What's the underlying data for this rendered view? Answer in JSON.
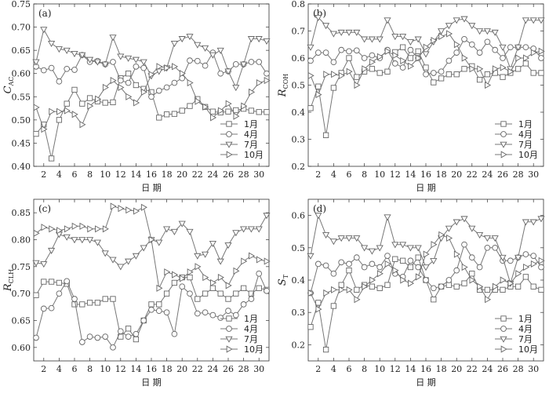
{
  "chart_data": [
    {
      "type": "line",
      "panel_label": "(a)",
      "ylabel": "C",
      "ylabel_sub": "AC",
      "xlabel": "日 期",
      "ylim": [
        0.4,
        0.75
      ],
      "yticks": [
        0.4,
        0.45,
        0.5,
        0.55,
        0.6,
        0.65,
        0.7,
        0.75
      ],
      "xlim": [
        1,
        31
      ],
      "xticks": [
        2,
        4,
        6,
        8,
        10,
        12,
        14,
        16,
        18,
        20,
        22,
        24,
        26,
        28,
        30
      ],
      "x": [
        1,
        2,
        3,
        4,
        5,
        6,
        7,
        8,
        9,
        10,
        11,
        12,
        13,
        14,
        15,
        16,
        17,
        18,
        19,
        20,
        21,
        22,
        23,
        24,
        25,
        26,
        27,
        28,
        29,
        30,
        31
      ],
      "series": [
        {
          "name": "1月",
          "marker": "square",
          "values": [
            0.47,
            0.49,
            0.417,
            0.5,
            0.535,
            0.565,
            0.535,
            0.547,
            0.54,
            0.537,
            0.538,
            0.59,
            0.6,
            0.575,
            0.567,
            0.56,
            0.505,
            0.512,
            0.513,
            0.52,
            0.53,
            0.545,
            0.528,
            0.518,
            0.516,
            0.518,
            0.521,
            0.524,
            0.52,
            0.517,
            0.517
          ]
        },
        {
          "name": "4月",
          "marker": "circle",
          "values": [
            0.615,
            0.607,
            0.612,
            0.583,
            0.61,
            0.608,
            0.64,
            0.625,
            0.627,
            0.62,
            0.625,
            0.585,
            0.58,
            0.615,
            0.612,
            0.55,
            0.563,
            0.57,
            0.58,
            0.59,
            0.628,
            0.627,
            0.617,
            0.645,
            0.6,
            0.605,
            0.62,
            0.62,
            0.625,
            0.625,
            0.6
          ]
        },
        {
          "name": "7月",
          "marker": "triangle-down",
          "values": [
            0.625,
            0.695,
            0.665,
            0.653,
            0.65,
            0.643,
            0.64,
            0.63,
            0.625,
            0.62,
            0.678,
            0.637,
            0.633,
            0.63,
            0.625,
            0.595,
            0.605,
            0.612,
            0.665,
            0.675,
            0.68,
            0.662,
            0.655,
            0.64,
            0.65,
            0.605,
            0.57,
            0.62,
            0.675,
            0.675,
            0.67
          ]
        },
        {
          "name": "10月",
          "marker": "triangle-right",
          "values": [
            0.527,
            0.48,
            0.518,
            0.518,
            0.52,
            0.512,
            0.49,
            0.53,
            0.545,
            0.57,
            0.585,
            0.57,
            0.55,
            0.537,
            0.56,
            0.598,
            0.615,
            0.612,
            0.615,
            0.6,
            0.58,
            0.54,
            0.528,
            0.505,
            0.52,
            0.535,
            0.508,
            0.53,
            0.56,
            0.58,
            0.585
          ]
        }
      ]
    },
    {
      "type": "line",
      "panel_label": "(b)",
      "ylabel": "R",
      "ylabel_sub": "COH",
      "xlabel": "日 期",
      "ylim": [
        0.2,
        0.8
      ],
      "yticks": [
        0.2,
        0.3,
        0.4,
        0.5,
        0.6,
        0.7,
        0.8
      ],
      "xlim": [
        1,
        31
      ],
      "xticks": [
        2,
        4,
        6,
        8,
        10,
        12,
        14,
        16,
        18,
        20,
        22,
        24,
        26,
        28,
        30
      ],
      "x": [
        1,
        2,
        3,
        4,
        5,
        6,
        7,
        8,
        9,
        10,
        11,
        12,
        13,
        14,
        15,
        16,
        17,
        18,
        19,
        20,
        21,
        22,
        23,
        24,
        25,
        26,
        27,
        28,
        29,
        30,
        31
      ],
      "series": [
        {
          "name": "1月",
          "marker": "square",
          "values": [
            0.415,
            0.495,
            0.315,
            0.49,
            0.545,
            0.6,
            0.53,
            0.55,
            0.56,
            0.545,
            0.55,
            0.622,
            0.64,
            0.6,
            0.625,
            0.565,
            0.51,
            0.525,
            0.54,
            0.54,
            0.56,
            0.57,
            0.52,
            0.54,
            0.545,
            0.53,
            0.545,
            0.56,
            0.58,
            0.545,
            0.545
          ]
        },
        {
          "name": "4月",
          "marker": "circle",
          "values": [
            0.59,
            0.62,
            0.62,
            0.585,
            0.63,
            0.625,
            0.628,
            0.6,
            0.61,
            0.6,
            0.63,
            0.58,
            0.565,
            0.63,
            0.6,
            0.54,
            0.545,
            0.55,
            0.59,
            0.62,
            0.67,
            0.65,
            0.62,
            0.66,
            0.63,
            0.6,
            0.64,
            0.64,
            0.64,
            0.635,
            0.6
          ]
        },
        {
          "name": "7月",
          "marker": "triangle-down",
          "values": [
            0.64,
            0.75,
            0.72,
            0.69,
            0.695,
            0.695,
            0.695,
            0.67,
            0.67,
            0.67,
            0.74,
            0.68,
            0.68,
            0.66,
            0.67,
            0.615,
            0.66,
            0.7,
            0.72,
            0.74,
            0.745,
            0.72,
            0.7,
            0.7,
            0.695,
            0.64,
            0.56,
            0.64,
            0.74,
            0.74,
            0.74
          ]
        },
        {
          "name": "10月",
          "marker": "triangle-right",
          "values": [
            0.535,
            0.465,
            0.54,
            0.54,
            0.535,
            0.55,
            0.5,
            0.56,
            0.585,
            0.605,
            0.625,
            0.61,
            0.59,
            0.57,
            0.6,
            0.64,
            0.665,
            0.68,
            0.69,
            0.65,
            0.6,
            0.56,
            0.56,
            0.5,
            0.56,
            0.565,
            0.55,
            0.6,
            0.6,
            0.62,
            0.625
          ]
        }
      ]
    },
    {
      "type": "line",
      "panel_label": "(c)",
      "ylabel": "R",
      "ylabel_sub": "CLH",
      "xlabel": "日 期",
      "ylim": [
        0.575,
        0.875
      ],
      "yticks": [
        0.6,
        0.65,
        0.7,
        0.75,
        0.8,
        0.85
      ],
      "xlim": [
        1,
        31
      ],
      "xticks": [
        2,
        4,
        6,
        8,
        10,
        12,
        14,
        16,
        18,
        20,
        22,
        24,
        26,
        28,
        30
      ],
      "x": [
        1,
        2,
        3,
        4,
        5,
        6,
        7,
        8,
        9,
        10,
        11,
        12,
        13,
        14,
        15,
        16,
        17,
        18,
        19,
        20,
        21,
        22,
        23,
        24,
        25,
        26,
        27,
        28,
        29,
        30,
        31
      ],
      "series": [
        {
          "name": "1月",
          "marker": "square",
          "values": [
            0.697,
            0.722,
            0.722,
            0.72,
            0.718,
            0.68,
            0.68,
            0.683,
            0.683,
            0.69,
            0.69,
            0.62,
            0.635,
            0.615,
            0.65,
            0.68,
            0.68,
            0.7,
            0.72,
            0.73,
            0.73,
            0.69,
            0.7,
            0.71,
            0.7,
            0.69,
            0.7,
            0.71,
            0.7,
            0.71,
            0.707
          ]
        },
        {
          "name": "4月",
          "marker": "circle",
          "values": [
            0.618,
            0.672,
            0.673,
            0.7,
            0.723,
            0.69,
            0.61,
            0.62,
            0.618,
            0.62,
            0.6,
            0.63,
            0.62,
            0.625,
            0.65,
            0.67,
            0.668,
            0.665,
            0.625,
            0.713,
            0.7,
            0.663,
            0.665,
            0.66,
            0.655,
            0.668,
            0.66,
            0.68,
            0.69,
            0.737,
            0.705
          ]
        },
        {
          "name": "7月",
          "marker": "triangle-down",
          "values": [
            0.757,
            0.755,
            0.78,
            0.81,
            0.805,
            0.8,
            0.8,
            0.8,
            0.795,
            0.775,
            0.763,
            0.75,
            0.76,
            0.77,
            0.785,
            0.8,
            0.795,
            0.82,
            0.815,
            0.83,
            0.815,
            0.77,
            0.773,
            0.793,
            0.76,
            0.79,
            0.813,
            0.82,
            0.82,
            0.82,
            0.845
          ]
        },
        {
          "name": "10月",
          "marker": "triangle-right",
          "values": [
            0.812,
            0.823,
            0.82,
            0.817,
            0.82,
            0.825,
            0.825,
            0.82,
            0.82,
            0.82,
            0.862,
            0.858,
            0.855,
            0.853,
            0.86,
            0.8,
            0.71,
            0.74,
            0.735,
            0.728,
            0.74,
            0.75,
            0.73,
            0.72,
            0.73,
            0.715,
            0.742,
            0.76,
            0.77,
            0.763,
            0.76
          ]
        }
      ]
    },
    {
      "type": "line",
      "panel_label": "(d)",
      "ylabel": "S",
      "ylabel_sub": "T",
      "xlabel": "日 期",
      "ylim": [
        0.15,
        0.65
      ],
      "yticks": [
        0.2,
        0.3,
        0.4,
        0.5,
        0.6
      ],
      "xlim": [
        1,
        31
      ],
      "xticks": [
        2,
        4,
        6,
        8,
        10,
        12,
        14,
        16,
        18,
        20,
        22,
        24,
        26,
        28,
        30
      ],
      "x": [
        1,
        2,
        3,
        4,
        5,
        6,
        7,
        8,
        9,
        10,
        11,
        12,
        13,
        14,
        15,
        16,
        17,
        18,
        19,
        20,
        21,
        22,
        23,
        24,
        25,
        26,
        27,
        28,
        29,
        30,
        31
      ],
      "series": [
        {
          "name": "1月",
          "marker": "square",
          "values": [
            0.255,
            0.33,
            0.185,
            0.32,
            0.385,
            0.43,
            0.37,
            0.385,
            0.38,
            0.375,
            0.385,
            0.465,
            0.46,
            0.44,
            0.47,
            0.4,
            0.34,
            0.38,
            0.385,
            0.38,
            0.39,
            0.42,
            0.37,
            0.37,
            0.37,
            0.37,
            0.38,
            0.38,
            0.41,
            0.38,
            0.37
          ]
        },
        {
          "name": "4月",
          "marker": "circle",
          "values": [
            0.36,
            0.45,
            0.445,
            0.42,
            0.455,
            0.45,
            0.47,
            0.44,
            0.45,
            0.44,
            0.475,
            0.42,
            0.41,
            0.46,
            0.44,
            0.4,
            0.375,
            0.38,
            0.4,
            0.43,
            0.51,
            0.47,
            0.44,
            0.5,
            0.5,
            0.46,
            0.46,
            0.47,
            0.48,
            0.475,
            0.44
          ]
        },
        {
          "name": "7月",
          "marker": "triangle-down",
          "values": [
            0.475,
            0.6,
            0.54,
            0.52,
            0.53,
            0.53,
            0.53,
            0.5,
            0.49,
            0.5,
            0.595,
            0.51,
            0.51,
            0.5,
            0.5,
            0.44,
            0.46,
            0.53,
            0.56,
            0.58,
            0.59,
            0.56,
            0.54,
            0.53,
            0.53,
            0.47,
            0.39,
            0.47,
            0.58,
            0.58,
            0.59
          ]
        },
        {
          "name": "10月",
          "marker": "triangle-right",
          "values": [
            0.36,
            0.31,
            0.36,
            0.37,
            0.37,
            0.37,
            0.34,
            0.38,
            0.4,
            0.42,
            0.45,
            0.43,
            0.4,
            0.39,
            0.41,
            0.48,
            0.51,
            0.54,
            0.53,
            0.48,
            0.44,
            0.4,
            0.38,
            0.34,
            0.38,
            0.4,
            0.39,
            0.42,
            0.44,
            0.45,
            0.46
          ]
        }
      ]
    }
  ]
}
